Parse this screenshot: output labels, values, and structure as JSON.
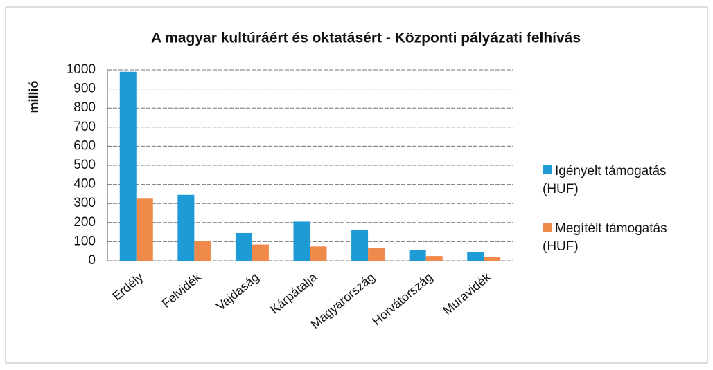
{
  "chart_data": {
    "type": "bar",
    "title": "A magyar kultúráért és oktatásért - Központi pályázati felhívás",
    "y_label": "millió",
    "categories": [
      "Erdély",
      "Felvidék",
      "Vajdaság",
      "Kárpátalja",
      "Magyarország",
      "Horvátország",
      "Muravidék"
    ],
    "series": [
      {
        "name": "Igényelt támogatás (HUF)",
        "color": "#1e9ad6",
        "values": [
          990,
          345,
          145,
          205,
          160,
          55,
          45
        ]
      },
      {
        "name": "Megítélt támogatás (HUF)",
        "color": "#f08a4b",
        "values": [
          325,
          105,
          85,
          75,
          65,
          25,
          20
        ]
      }
    ],
    "ylim": [
      0,
      1000
    ],
    "yticks": [
      0,
      100,
      200,
      300,
      400,
      500,
      600,
      700,
      800,
      900,
      1000
    ],
    "grid": true,
    "legend": "right"
  }
}
